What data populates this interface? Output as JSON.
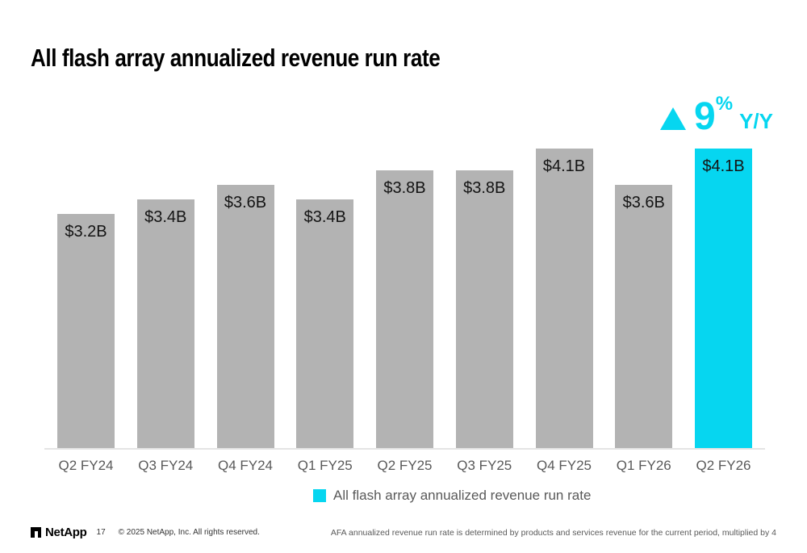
{
  "slide": {
    "title": "All flash array annualized revenue run rate",
    "growth_indicator": {
      "icon": "up-triangle-icon",
      "value": "9",
      "percent_sign": "%",
      "suffix": "Y/Y",
      "color": "#06d6f0"
    },
    "legend": {
      "label": "All flash array annualized revenue run rate",
      "swatch_color": "#06d6f0"
    },
    "footer": {
      "brand": "NetApp",
      "page_number": "17",
      "copyright": "© 2025 NetApp, Inc. All rights reserved.",
      "note": "AFA annualized revenue run rate is determined by products and services revenue for the current period, multiplied by 4"
    },
    "colors": {
      "bar_default": "#b3b3b3",
      "bar_highlight": "#06d6f0",
      "axis_text": "#595959",
      "value_text": "#141414",
      "baseline": "#e4e4e4"
    }
  },
  "chart_data": {
    "type": "bar",
    "title": "All flash array annualized revenue run rate",
    "categories": [
      "Q2 FY24",
      "Q3 FY24",
      "Q4 FY24",
      "Q1 FY25",
      "Q2 FY25",
      "Q3 FY25",
      "Q4 FY25",
      "Q1 FY26",
      "Q2 FY26"
    ],
    "values": [
      3.2,
      3.4,
      3.6,
      3.4,
      3.8,
      3.8,
      4.1,
      3.6,
      4.1
    ],
    "value_labels": [
      "$3.2B",
      "$3.4B",
      "$3.6B",
      "$3.4B",
      "$3.8B",
      "$3.8B",
      "$4.1B",
      "$3.6B",
      "$4.1B"
    ],
    "unit": "USD billions",
    "highlight_index": 8,
    "bar_color_default": "#b3b3b3",
    "bar_color_highlight": "#06d6f0",
    "xlabel": "",
    "ylabel": "",
    "ylim": [
      0,
      4.5
    ],
    "grid": false,
    "y_axis_shown": false,
    "legend_position": "bottom-center",
    "legend_entries": [
      "All flash array annualized revenue run rate"
    ],
    "annotations": [
      "▲ 9% Y/Y (top right, cyan)"
    ]
  }
}
